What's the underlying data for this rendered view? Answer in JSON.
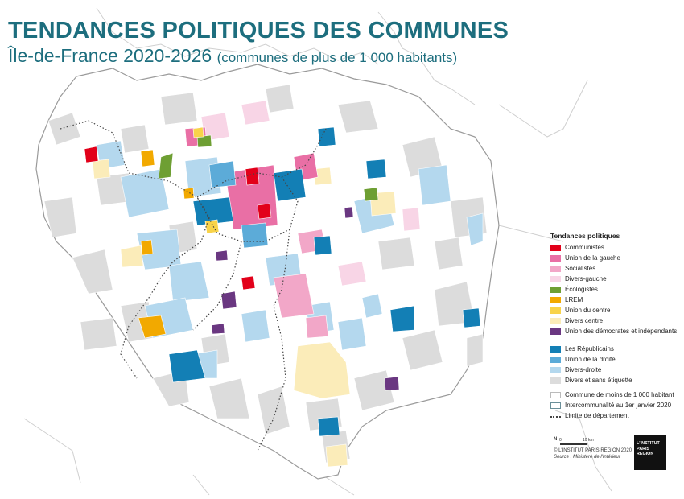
{
  "title": "TENDANCES POLITIQUES DES COMMUNES",
  "subtitle_main": "Île-de-France 2020-2026",
  "subtitle_paren": "(communes de plus de 1 000 habitants)",
  "legend": {
    "title": "Tendances politiques",
    "items": [
      {
        "label": "Communistes",
        "color": "#e2001a"
      },
      {
        "label": "Union de la gauche",
        "color": "#e96fa5"
      },
      {
        "label": "Socialistes",
        "color": "#f2a7c8"
      },
      {
        "label": "Divers-gauche",
        "color": "#f8d5e6"
      },
      {
        "label": "Écologistes",
        "color": "#6e9f33"
      },
      {
        "label": "LREM",
        "color": "#f2a900"
      },
      {
        "label": "Union du centre",
        "color": "#f8d34a"
      },
      {
        "label": "Divers centre",
        "color": "#fbecb9"
      },
      {
        "label": "Union des démocrates et indépendants",
        "color": "#6a3781"
      },
      {
        "label": "Les Républicains",
        "color": "#137fb5"
      },
      {
        "label": "Union de la droite",
        "color": "#5cabd8"
      },
      {
        "label": "Divers-droite",
        "color": "#b4d8ee"
      },
      {
        "label": "Divers et sans étiquette",
        "color": "#dcdcdc"
      }
    ],
    "extra": [
      {
        "label": "Commune de moins de 1 000 habitant"
      },
      {
        "label": "Intercommunalité au 1er janvier 2020"
      },
      {
        "label": "Limite de département"
      }
    ]
  },
  "scale": {
    "start": "0",
    "end": "10 km",
    "north": "N"
  },
  "credits": {
    "line1": "© L'INSTITUT PARIS REGION 2020",
    "line2": "Source : Ministère de l'Intérieur"
  },
  "logo": {
    "line1": "L'INSTITUT",
    "line2": "PARIS",
    "line3": "REGION"
  }
}
